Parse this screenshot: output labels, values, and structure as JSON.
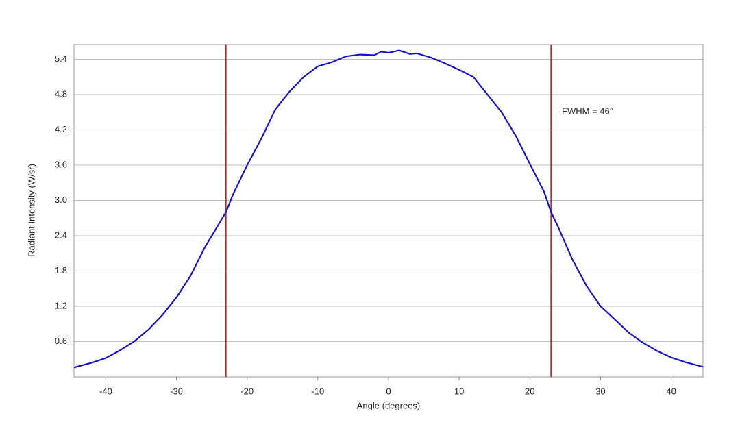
{
  "chart_data": {
    "type": "line",
    "x_label": "Angle (degrees)",
    "y_label": "Radiant Intensity (W/sr)",
    "annotation": "FWHM = 46°",
    "x": [
      -44.5,
      -42,
      -40,
      -38,
      -36,
      -34,
      -32,
      -30,
      -28,
      -26,
      -24,
      -23,
      -22,
      -20,
      -18,
      -16,
      -14,
      -12,
      -10,
      -8,
      -6,
      -4,
      -2,
      -1,
      0,
      1.5,
      3,
      4,
      6,
      8,
      10,
      12,
      14,
      16,
      18,
      20,
      22,
      23,
      24,
      26,
      28,
      30,
      32,
      34,
      36,
      38,
      40,
      42,
      44.5
    ],
    "series": [
      {
        "color": "#1414cc",
        "values": [
          0.16,
          0.24,
          0.32,
          0.45,
          0.6,
          0.8,
          1.05,
          1.35,
          1.72,
          2.2,
          2.6,
          2.8,
          3.1,
          3.6,
          4.05,
          4.55,
          4.85,
          5.1,
          5.28,
          5.35,
          5.45,
          5.48,
          5.47,
          5.53,
          5.51,
          5.55,
          5.49,
          5.5,
          5.43,
          5.33,
          5.22,
          5.1,
          4.8,
          4.5,
          4.1,
          3.62,
          3.15,
          2.8,
          2.55,
          2.0,
          1.55,
          1.2,
          0.98,
          0.75,
          0.58,
          0.44,
          0.33,
          0.25,
          0.17
        ]
      }
    ],
    "reference_lines": [
      {
        "x": -23,
        "color": "#cc2222"
      },
      {
        "x": 23,
        "color": "#cc2222"
      }
    ],
    "xlim": [
      -44.5,
      44.5
    ],
    "ylim": [
      0,
      5.65
    ],
    "xticks": [
      -40,
      -30,
      -20,
      -10,
      0,
      10,
      20,
      30,
      40
    ],
    "yticks": [
      0.6,
      1.2,
      1.8,
      2.4,
      {
        "value": 3,
        "label": "3.0"
      },
      3.6,
      4.2,
      4.8,
      5.4
    ],
    "grid": true
  }
}
